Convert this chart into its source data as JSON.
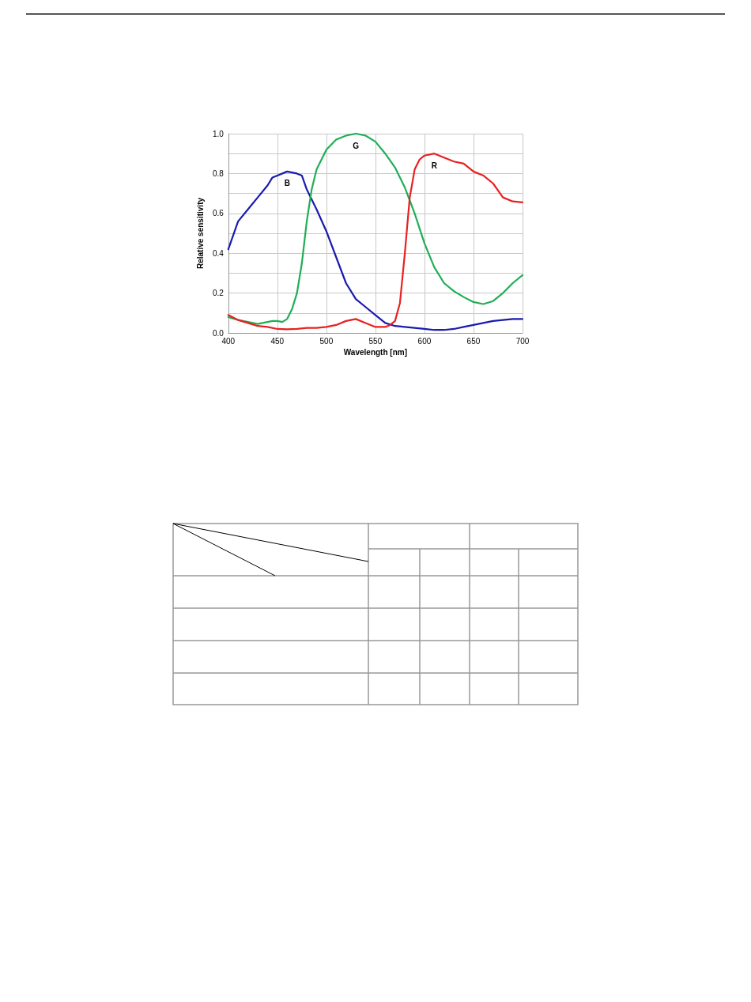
{
  "chart_data": {
    "type": "line",
    "xlabel": "Wavelength [nm]",
    "ylabel": "Relative sensitivity",
    "xlim": [
      400,
      700
    ],
    "xticks": [
      400,
      450,
      500,
      550,
      600,
      650,
      700
    ],
    "ylim": [
      0,
      1
    ],
    "yticks": [
      {
        "value": 0,
        "label": "0.0"
      },
      {
        "value": 0.1,
        "label": null
      },
      0.2,
      {
        "value": 0.3,
        "label": null
      },
      0.4,
      {
        "value": 0.5,
        "label": null
      },
      0.6,
      {
        "value": 0.7,
        "label": null
      },
      0.8,
      {
        "value": 0.9,
        "label": null
      },
      {
        "value": 1,
        "label": "1.0"
      }
    ],
    "grid": true,
    "marker": "none",
    "line_style": "solid",
    "series": [
      {
        "name": "B",
        "color": "#1a1ab0",
        "x": [
          400,
          410,
          420,
          430,
          440,
          445,
          450,
          460,
          470,
          475,
          480,
          490,
          500,
          510,
          520,
          530,
          540,
          550,
          560,
          570,
          580,
          590,
          600,
          610,
          620,
          630,
          640,
          650,
          660,
          670,
          680,
          690,
          700
        ],
        "values": [
          0.42,
          0.56,
          0.62,
          0.68,
          0.74,
          0.78,
          0.79,
          0.81,
          0.8,
          0.79,
          0.72,
          0.62,
          0.51,
          0.38,
          0.25,
          0.17,
          0.13,
          0.09,
          0.05,
          0.035,
          0.03,
          0.025,
          0.02,
          0.015,
          0.015,
          0.02,
          0.03,
          0.04,
          0.05,
          0.06,
          0.065,
          0.07,
          0.07
        ]
      },
      {
        "name": "G",
        "color": "#1fae55",
        "x": [
          400,
          410,
          420,
          430,
          440,
          445,
          450,
          455,
          460,
          465,
          470,
          475,
          480,
          485,
          490,
          500,
          510,
          520,
          530,
          540,
          550,
          560,
          570,
          580,
          590,
          600,
          610,
          620,
          630,
          640,
          650,
          660,
          670,
          680,
          690,
          700
        ],
        "values": [
          0.08,
          0.065,
          0.055,
          0.045,
          0.055,
          0.06,
          0.06,
          0.055,
          0.07,
          0.12,
          0.2,
          0.35,
          0.56,
          0.72,
          0.82,
          0.92,
          0.97,
          0.99,
          1.0,
          0.99,
          0.96,
          0.9,
          0.83,
          0.73,
          0.6,
          0.45,
          0.33,
          0.25,
          0.21,
          0.18,
          0.155,
          0.145,
          0.16,
          0.2,
          0.25,
          0.29
        ]
      },
      {
        "name": "R",
        "color": "#e82020",
        "x": [
          400,
          410,
          420,
          430,
          440,
          450,
          460,
          470,
          480,
          490,
          500,
          510,
          520,
          530,
          540,
          550,
          560,
          565,
          570,
          575,
          580,
          585,
          590,
          595,
          600,
          610,
          620,
          630,
          640,
          650,
          660,
          670,
          680,
          690,
          700
        ],
        "values": [
          0.09,
          0.065,
          0.05,
          0.035,
          0.03,
          0.02,
          0.018,
          0.02,
          0.025,
          0.025,
          0.03,
          0.04,
          0.06,
          0.07,
          0.05,
          0.03,
          0.03,
          0.04,
          0.06,
          0.15,
          0.4,
          0.68,
          0.82,
          0.87,
          0.89,
          0.9,
          0.88,
          0.86,
          0.85,
          0.81,
          0.79,
          0.75,
          0.68,
          0.66,
          0.655
        ]
      }
    ]
  }
}
